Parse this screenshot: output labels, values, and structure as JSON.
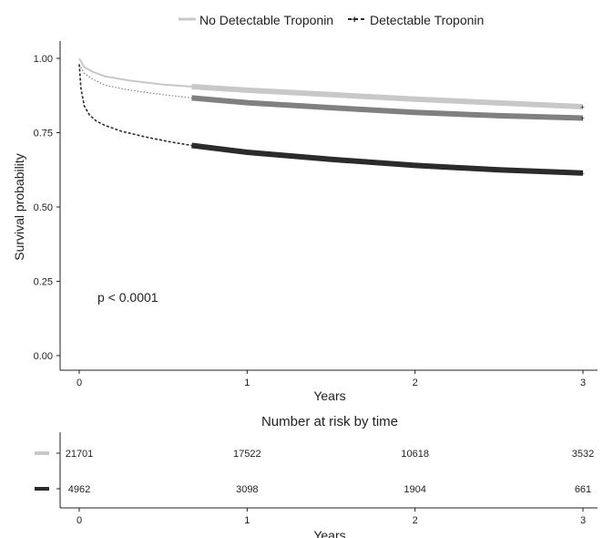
{
  "chart_data": [
    {
      "type": "line",
      "subtype": "kaplan-meier",
      "title": "",
      "xlabel": "Years",
      "ylabel": "Survival probability",
      "xlim": [
        0,
        3
      ],
      "ylim": [
        0,
        1
      ],
      "x_ticks": [
        "0",
        "1",
        "2",
        "3"
      ],
      "y_ticks": [
        "0.00",
        "0.25",
        "0.50",
        "0.75",
        "1.00"
      ],
      "grid": false,
      "legend_position": "top",
      "annotation": "p < 0.0001",
      "series": [
        {
          "name": "No Detectable Troponin",
          "color": "#c8c8c8",
          "line_style": "solid",
          "x": [
            0,
            0.03,
            0.08,
            0.15,
            0.3,
            0.5,
            0.67,
            1.0,
            1.5,
            2.0,
            2.5,
            3.0
          ],
          "y": [
            1.0,
            0.97,
            0.955,
            0.94,
            0.925,
            0.912,
            0.905,
            0.893,
            0.878,
            0.863,
            0.85,
            0.837
          ]
        },
        {
          "name": "",
          "color": "#808080",
          "line_style": "dotted",
          "x": [
            0,
            0.03,
            0.08,
            0.15,
            0.3,
            0.5,
            0.67,
            1.0,
            1.5,
            2.0,
            2.5,
            3.0
          ],
          "y": [
            0.98,
            0.95,
            0.93,
            0.91,
            0.893,
            0.878,
            0.867,
            0.851,
            0.834,
            0.818,
            0.807,
            0.799
          ]
        },
        {
          "name": "Detectable Troponin",
          "color": "#2b2b2b",
          "line_style": "dashed",
          "x": [
            0,
            0.01,
            0.03,
            0.06,
            0.1,
            0.15,
            0.25,
            0.4,
            0.55,
            0.67,
            1.0,
            1.5,
            2.0,
            2.5,
            3.0
          ],
          "y": [
            0.98,
            0.9,
            0.84,
            0.81,
            0.79,
            0.775,
            0.755,
            0.735,
            0.718,
            0.707,
            0.684,
            0.66,
            0.64,
            0.625,
            0.614
          ]
        }
      ]
    },
    {
      "type": "table",
      "title": "Number at risk by time",
      "xlabel": "Years",
      "x_ticks": [
        "0",
        "1",
        "2",
        "3"
      ],
      "rows": [
        {
          "color": "#c8c8c8",
          "values": [
            "21701",
            "17522",
            "10618",
            "3532"
          ]
        },
        {
          "color": "#2b2b2b",
          "values": [
            "4962",
            "3098",
            "1904",
            "661"
          ]
        }
      ]
    }
  ]
}
